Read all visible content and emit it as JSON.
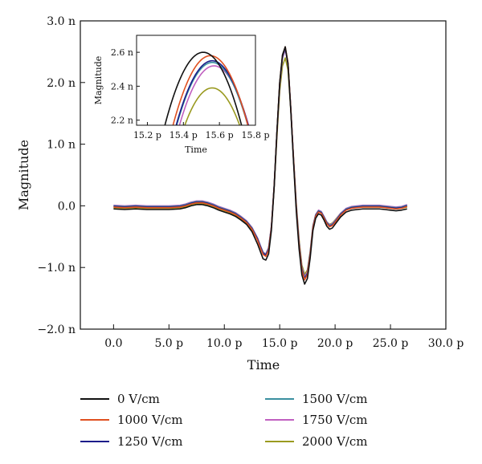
{
  "chart_data": [
    {
      "type": "line",
      "xlabel": "Time",
      "ylabel": "Magnitude",
      "xlim": [
        -3,
        30
      ],
      "ylim": [
        -2,
        3
      ],
      "x_ticks": [
        {
          "value": 0,
          "label": "0.0"
        },
        {
          "value": 5,
          "label": "5.0 p"
        },
        {
          "value": 10,
          "label": "10.0 p"
        },
        {
          "value": 15,
          "label": "15.0 p"
        },
        {
          "value": 20,
          "label": "20.0 p"
        },
        {
          "value": 25,
          "label": "25.0 p"
        },
        {
          "value": 30,
          "label": "30.0 p"
        }
      ],
      "y_ticks": [
        {
          "value": 3,
          "label": "3.0 n"
        },
        {
          "value": 2,
          "label": "2.0 n"
        },
        {
          "value": 1,
          "label": "1.0 n"
        },
        {
          "value": 0,
          "label": "0.0"
        },
        {
          "value": -1,
          "label": "−1.0 n"
        },
        {
          "value": -2,
          "label": "−2.0 n"
        }
      ],
      "x_unit": "ps",
      "y_unit": "n",
      "grid": false,
      "legend_position": "bottom",
      "x": [
        0,
        1,
        2,
        3,
        4,
        5,
        6,
        6.5,
        7,
        7.5,
        8,
        8.5,
        9,
        9.5,
        10,
        10.5,
        11,
        11.5,
        12,
        12.5,
        13,
        13.25,
        13.5,
        13.75,
        14,
        14.25,
        14.5,
        14.75,
        15,
        15.25,
        15.5,
        15.75,
        16,
        16.25,
        16.5,
        16.75,
        17,
        17.25,
        17.5,
        17.75,
        18,
        18.25,
        18.5,
        18.75,
        19,
        19.25,
        19.5,
        19.75,
        20,
        20.5,
        21,
        21.5,
        22,
        22.5,
        23,
        23.5,
        24,
        24.5,
        25,
        25.5,
        26,
        26.5
      ],
      "series": [
        {
          "name": "0 V/cm",
          "color": "#111111",
          "values": [
            -0.05,
            -0.06,
            -0.05,
            -0.06,
            -0.06,
            -0.06,
            -0.05,
            -0.03,
            0.0,
            0.02,
            0.02,
            0.0,
            -0.03,
            -0.07,
            -0.1,
            -0.13,
            -0.17,
            -0.23,
            -0.3,
            -0.42,
            -0.62,
            -0.74,
            -0.86,
            -0.88,
            -0.78,
            -0.4,
            0.3,
            1.2,
            2.0,
            2.45,
            2.58,
            2.3,
            1.55,
            0.7,
            -0.1,
            -0.7,
            -1.12,
            -1.27,
            -1.18,
            -0.85,
            -0.4,
            -0.2,
            -0.13,
            -0.15,
            -0.23,
            -0.33,
            -0.38,
            -0.36,
            -0.3,
            -0.18,
            -0.1,
            -0.07,
            -0.06,
            -0.05,
            -0.05,
            -0.05,
            -0.05,
            -0.06,
            -0.07,
            -0.08,
            -0.07,
            -0.05
          ]
        },
        {
          "name": "1000 V/cm",
          "color": "#e05020",
          "values": [
            -0.02,
            -0.03,
            -0.02,
            -0.03,
            -0.03,
            -0.03,
            -0.02,
            0.0,
            0.03,
            0.05,
            0.05,
            0.03,
            0.0,
            -0.04,
            -0.07,
            -0.1,
            -0.14,
            -0.2,
            -0.27,
            -0.38,
            -0.56,
            -0.68,
            -0.79,
            -0.82,
            -0.72,
            -0.36,
            0.32,
            1.2,
            2.0,
            2.44,
            2.58,
            2.32,
            1.58,
            0.74,
            -0.05,
            -0.64,
            -1.05,
            -1.2,
            -1.12,
            -0.8,
            -0.36,
            -0.17,
            -0.1,
            -0.12,
            -0.2,
            -0.29,
            -0.34,
            -0.32,
            -0.27,
            -0.15,
            -0.07,
            -0.04,
            -0.03,
            -0.02,
            -0.02,
            -0.02,
            -0.02,
            -0.03,
            -0.04,
            -0.05,
            -0.04,
            -0.01
          ]
        },
        {
          "name": "1250 V/cm",
          "color": "#1c1c8a",
          "values": [
            -0.01,
            -0.02,
            -0.01,
            -0.02,
            -0.02,
            -0.02,
            -0.01,
            0.01,
            0.04,
            0.06,
            0.06,
            0.04,
            0.01,
            -0.03,
            -0.06,
            -0.09,
            -0.13,
            -0.19,
            -0.26,
            -0.37,
            -0.54,
            -0.66,
            -0.77,
            -0.8,
            -0.7,
            -0.35,
            0.32,
            1.2,
            1.98,
            2.42,
            2.56,
            2.31,
            1.58,
            0.75,
            -0.03,
            -0.62,
            -1.03,
            -1.18,
            -1.1,
            -0.78,
            -0.35,
            -0.16,
            -0.09,
            -0.11,
            -0.19,
            -0.28,
            -0.33,
            -0.31,
            -0.26,
            -0.14,
            -0.06,
            -0.03,
            -0.02,
            -0.01,
            -0.01,
            -0.01,
            -0.01,
            -0.02,
            -0.03,
            -0.04,
            -0.03,
            0.0
          ]
        },
        {
          "name": "1500 V/cm",
          "color": "#3a8fa0",
          "values": [
            0.0,
            -0.01,
            0.0,
            -0.01,
            -0.01,
            -0.01,
            0.0,
            0.02,
            0.05,
            0.07,
            0.07,
            0.05,
            0.02,
            -0.02,
            -0.05,
            -0.08,
            -0.12,
            -0.18,
            -0.25,
            -0.36,
            -0.53,
            -0.65,
            -0.76,
            -0.79,
            -0.69,
            -0.34,
            0.33,
            1.2,
            1.97,
            2.41,
            2.55,
            2.3,
            1.58,
            0.75,
            -0.02,
            -0.61,
            -1.02,
            -1.17,
            -1.09,
            -0.77,
            -0.34,
            -0.15,
            -0.08,
            -0.1,
            -0.18,
            -0.27,
            -0.32,
            -0.3,
            -0.25,
            -0.13,
            -0.05,
            -0.02,
            -0.01,
            0.0,
            0.0,
            0.0,
            0.0,
            -0.01,
            -0.02,
            -0.03,
            -0.02,
            0.01
          ]
        },
        {
          "name": "1750 V/cm",
          "color": "#c060c0",
          "values": [
            0.01,
            0.0,
            0.01,
            0.0,
            0.0,
            0.0,
            0.01,
            0.03,
            0.06,
            0.08,
            0.08,
            0.06,
            0.03,
            -0.01,
            -0.04,
            -0.07,
            -0.11,
            -0.17,
            -0.24,
            -0.35,
            -0.52,
            -0.64,
            -0.75,
            -0.78,
            -0.68,
            -0.33,
            0.33,
            1.19,
            1.95,
            2.39,
            2.53,
            2.29,
            1.58,
            0.76,
            0.0,
            -0.59,
            -1.0,
            -1.15,
            -1.07,
            -0.76,
            -0.33,
            -0.14,
            -0.07,
            -0.09,
            -0.17,
            -0.26,
            -0.31,
            -0.29,
            -0.24,
            -0.12,
            -0.04,
            -0.01,
            0.0,
            0.01,
            0.01,
            0.01,
            0.01,
            0.0,
            -0.01,
            -0.02,
            -0.01,
            0.02
          ]
        },
        {
          "name": "2000 V/cm",
          "color": "#9a9a20",
          "values": [
            -0.03,
            -0.04,
            -0.03,
            -0.04,
            -0.04,
            -0.04,
            -0.03,
            -0.01,
            0.02,
            0.04,
            0.04,
            0.02,
            -0.01,
            -0.05,
            -0.08,
            -0.11,
            -0.15,
            -0.21,
            -0.28,
            -0.39,
            -0.55,
            -0.66,
            -0.76,
            -0.78,
            -0.68,
            -0.34,
            0.3,
            1.12,
            1.86,
            2.27,
            2.4,
            2.2,
            1.55,
            0.78,
            0.03,
            -0.55,
            -0.96,
            -1.11,
            -1.04,
            -0.74,
            -0.32,
            -0.14,
            -0.08,
            -0.1,
            -0.18,
            -0.26,
            -0.3,
            -0.28,
            -0.23,
            -0.12,
            -0.05,
            -0.03,
            -0.02,
            -0.02,
            -0.02,
            -0.02,
            -0.02,
            -0.03,
            -0.04,
            -0.05,
            -0.04,
            -0.02
          ]
        }
      ]
    },
    {
      "type": "line",
      "xlabel": "Time",
      "ylabel": "Magnitude",
      "xlim": [
        15.14,
        15.8
      ],
      "ylim": [
        2.17,
        2.7
      ],
      "x_ticks": [
        {
          "value": 15.2,
          "label": "15.2 p"
        },
        {
          "value": 15.4,
          "label": "15.4 p"
        },
        {
          "value": 15.6,
          "label": "15.6 p"
        },
        {
          "value": 15.8,
          "label": "15.8 p"
        }
      ],
      "y_ticks": [
        {
          "value": 2.6,
          "label": "2.6 n"
        },
        {
          "value": 2.4,
          "label": "2.4 n"
        },
        {
          "value": 2.2,
          "label": "2.2 n"
        }
      ],
      "series": [
        {
          "name": "0 V/cm",
          "color": "#111111",
          "peak_x": 15.51,
          "peak_y": 2.6,
          "curvature": 9.5
        },
        {
          "name": "1000 V/cm",
          "color": "#e05020",
          "peak_x": 15.55,
          "peak_y": 2.58,
          "curvature": 9.5
        },
        {
          "name": "1250 V/cm",
          "color": "#1c1c8a",
          "peak_x": 15.56,
          "peak_y": 2.55,
          "curvature": 9.5
        },
        {
          "name": "1500 V/cm",
          "color": "#3a8fa0",
          "peak_x": 15.56,
          "peak_y": 2.54,
          "curvature": 9.5
        },
        {
          "name": "1750 V/cm",
          "color": "#c060c0",
          "peak_x": 15.57,
          "peak_y": 2.52,
          "curvature": 9.5
        },
        {
          "name": "2000 V/cm",
          "color": "#9a9a20",
          "peak_x": 15.56,
          "peak_y": 2.39,
          "curvature": 9.5
        }
      ]
    }
  ]
}
